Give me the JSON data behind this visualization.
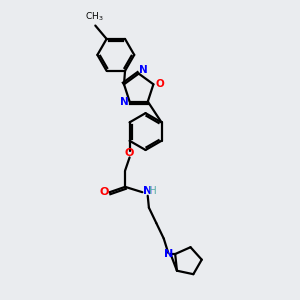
{
  "bg_color": "#eaecef",
  "bond_color": "#000000",
  "N_color": "#0000ff",
  "O_color": "#ff0000",
  "NH_color": "#5aacac",
  "line_width": 1.6,
  "figsize": [
    3.0,
    3.0
  ],
  "dpi": 100,
  "xlim": [
    0,
    10
  ],
  "ylim": [
    0,
    10
  ]
}
